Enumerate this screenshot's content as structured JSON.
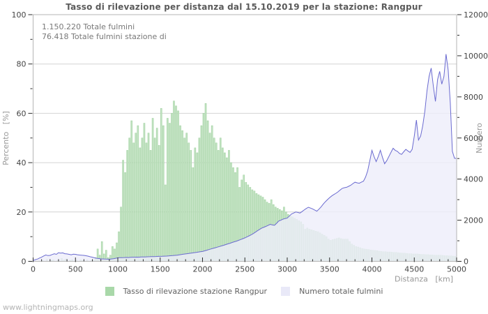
{
  "annotations": {
    "line1": "1.150.220 Totale fulmini",
    "line2": "76.418 Totale fulmini stazione di"
  },
  "watermark": "www.lightningmaps.org",
  "colors": {
    "frame": "#b4b4b4",
    "grid": "#d4d4d4",
    "tick": "#2a2a2a",
    "tick_label": "#444444",
    "axis_title": "#979797",
    "bar_fill": "#c2e2c2",
    "bar_edge": "#9bd09b",
    "area_fill": "#ededfa",
    "line": "#6a6ad0"
  },
  "chart_data": {
    "type": "bar+area-line",
    "title": "Tasso di rilevazione per distanza dal 15.10.2019 per la stazione: Rangpur",
    "grid": "horizontal-major-only",
    "legend_position": "bottom-center",
    "x_axis": {
      "label": "Distanza   [km]",
      "range": [
        0,
        5000
      ],
      "major_ticks": [
        0,
        500,
        1000,
        1500,
        2000,
        2500,
        3000,
        3500,
        4000,
        4500,
        5000
      ],
      "minor_step": 100
    },
    "y_left": {
      "label": "Percento   [%]",
      "range": [
        0,
        100
      ],
      "major_ticks": [
        0,
        20,
        40,
        60,
        80,
        100
      ],
      "minor_step": 10
    },
    "y_right": {
      "label": "Numero",
      "range": [
        0,
        12000
      ],
      "major_ticks": [
        0,
        2000,
        4000,
        6000,
        8000,
        10000,
        12000
      ],
      "minor_step": 1000
    },
    "series": [
      {
        "name": "Tasso di rilevazione stazione Rangpur",
        "type": "bar",
        "axis": "left",
        "color": "#c2e2c2",
        "edge_color": "#9bd09b",
        "legend_color": "#a9d8a9",
        "x_start_km": 0,
        "bin_width_km": 25,
        "values_percent": [
          0,
          0,
          0,
          0,
          0.3,
          0,
          0.8,
          0,
          0.4,
          0.6,
          0,
          0.3,
          0,
          1.2,
          0.5,
          0.9,
          0,
          0.4,
          0.7,
          0,
          0.5,
          0,
          0.6,
          0.3,
          0,
          0.5,
          0,
          0.4,
          0.6,
          1.5,
          5,
          2.5,
          8,
          3,
          4.5,
          1.5,
          2.5,
          6,
          5,
          7.5,
          12,
          22,
          41,
          36,
          45,
          50,
          57,
          48,
          52,
          55,
          46,
          50,
          56,
          48,
          52,
          45,
          58,
          50,
          54,
          47,
          62,
          55,
          31,
          58,
          56,
          60,
          65,
          63,
          61,
          55,
          53,
          50,
          52,
          48,
          45,
          38,
          46,
          44,
          50,
          55,
          60,
          64,
          57,
          52,
          55,
          50,
          48,
          45,
          50,
          46,
          44,
          42,
          45,
          40,
          38,
          36,
          38,
          30,
          33,
          35,
          32,
          31,
          30,
          29,
          28.5,
          27.5,
          27,
          26.5,
          26,
          25,
          24,
          23.5,
          25,
          23,
          22,
          21.5,
          21,
          20.5,
          22,
          20,
          19,
          18.5,
          18,
          17.5,
          17,
          16.5,
          16,
          15,
          13,
          13.5,
          13,
          12.8,
          12.5,
          12.2,
          12,
          11.5,
          11,
          10.5,
          10,
          9,
          8.5,
          8.8,
          9,
          9.3,
          9.5,
          9.2,
          9,
          9,
          9,
          8,
          7,
          6.5,
          6,
          5.8,
          5.5,
          5.2,
          5,
          4.9,
          4.8,
          4.6,
          4.5,
          4.4,
          4.3,
          4.1,
          4,
          3.9,
          3.9,
          3.8,
          3.8,
          3.7,
          3.6,
          3.6,
          3.5,
          3.4,
          3.3,
          3.3,
          3.2,
          3.1,
          3.1,
          3,
          3,
          3,
          2.9,
          2.8,
          2.8,
          2.7,
          2.7,
          2.6,
          2.6,
          2.5,
          2.5,
          2.5,
          2.5,
          2.4,
          2.3,
          2.3,
          2.2,
          2.2,
          2.1,
          2
        ]
      },
      {
        "name": "Numero totale fulmini",
        "type": "area-line",
        "axis": "right",
        "line_color": "#6a6ad0",
        "fill_color": "#ededfa",
        "legend_color": "#e9e9f8",
        "x_step_km": 25,
        "values_count": [
          40,
          80,
          110,
          160,
          200,
          260,
          310,
          280,
          290,
          330,
          370,
          340,
          420,
          400,
          410,
          370,
          360,
          340,
          320,
          345,
          340,
          320,
          305,
          295,
          290,
          270,
          250,
          220,
          200,
          170,
          150,
          135,
          120,
          115,
          110,
          105,
          100,
          115,
          130,
          150,
          170,
          175,
          180,
          185,
          190,
          185,
          195,
          200,
          200,
          205,
          200,
          210,
          210,
          215,
          220,
          225,
          230,
          230,
          235,
          240,
          240,
          245,
          250,
          255,
          260,
          270,
          280,
          290,
          300,
          315,
          330,
          345,
          360,
          375,
          390,
          405,
          420,
          435,
          450,
          465,
          480,
          510,
          540,
          570,
          600,
          630,
          660,
          690,
          720,
          750,
          780,
          815,
          850,
          880,
          915,
          950,
          980,
          1020,
          1060,
          1100,
          1140,
          1190,
          1240,
          1295,
          1350,
          1420,
          1490,
          1555,
          1620,
          1660,
          1700,
          1750,
          1800,
          1770,
          1750,
          1850,
          1960,
          2000,
          2050,
          2080,
          2100,
          2200,
          2300,
          2350,
          2400,
          2380,
          2350,
          2420,
          2500,
          2570,
          2630,
          2590,
          2550,
          2490,
          2440,
          2540,
          2650,
          2780,
          2900,
          3000,
          3100,
          3180,
          3250,
          3310,
          3380,
          3470,
          3550,
          3580,
          3600,
          3650,
          3700,
          3780,
          3850,
          3820,
          3800,
          3850,
          3900,
          4100,
          4400,
          4900,
          5400,
          5100,
          4850,
          5100,
          5400,
          5050,
          4750,
          4900,
          5100,
          5300,
          5500,
          5400,
          5350,
          5250,
          5200,
          5330,
          5450,
          5370,
          5300,
          5450,
          6100,
          6870,
          5900,
          6100,
          6600,
          7300,
          8300,
          9000,
          9400,
          8520,
          7780,
          8850,
          9240,
          8620,
          9000,
          10080,
          9300,
          7720,
          5350,
          5010,
          5010
        ]
      }
    ],
    "totals_note": {
      "total_lightning": "1.150.220",
      "station_lightning": "76.418"
    }
  }
}
